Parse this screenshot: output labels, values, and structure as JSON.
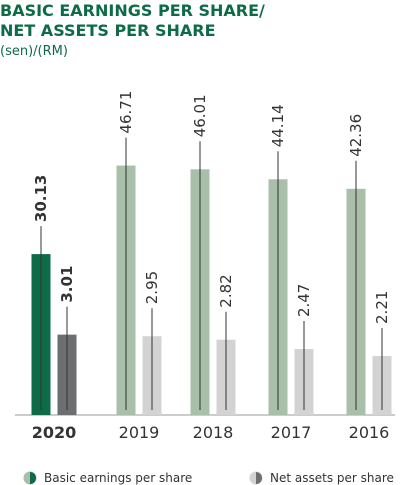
{
  "chart_data": {
    "type": "bar",
    "title": [
      "BASIC EARNINGS PER SHARE/",
      "NET ASSETS PER SHARE"
    ],
    "subtitle": "(sen)/(RM)",
    "categories": [
      "2020",
      "2019",
      "2018",
      "2017",
      "2016"
    ],
    "series": [
      {
        "name": "Basic earnings per share",
        "values": [
          30.13,
          46.71,
          46.01,
          44.14,
          42.36
        ],
        "colors": [
          "#0d6b47",
          "#a9bfaa",
          "#a9bfaa",
          "#a9bfaa",
          "#a9bfaa"
        ]
      },
      {
        "name": "Net assets per share",
        "axis": "y2",
        "values": [
          3.01,
          2.95,
          2.82,
          2.47,
          2.21
        ],
        "colors": [
          "#6d6e70",
          "#d3d3d3",
          "#d3d3d3",
          "#d3d3d3",
          "#d3d3d3"
        ]
      }
    ],
    "ylim": [
      0,
      50
    ],
    "y2lim": [
      0,
      10
    ]
  }
}
